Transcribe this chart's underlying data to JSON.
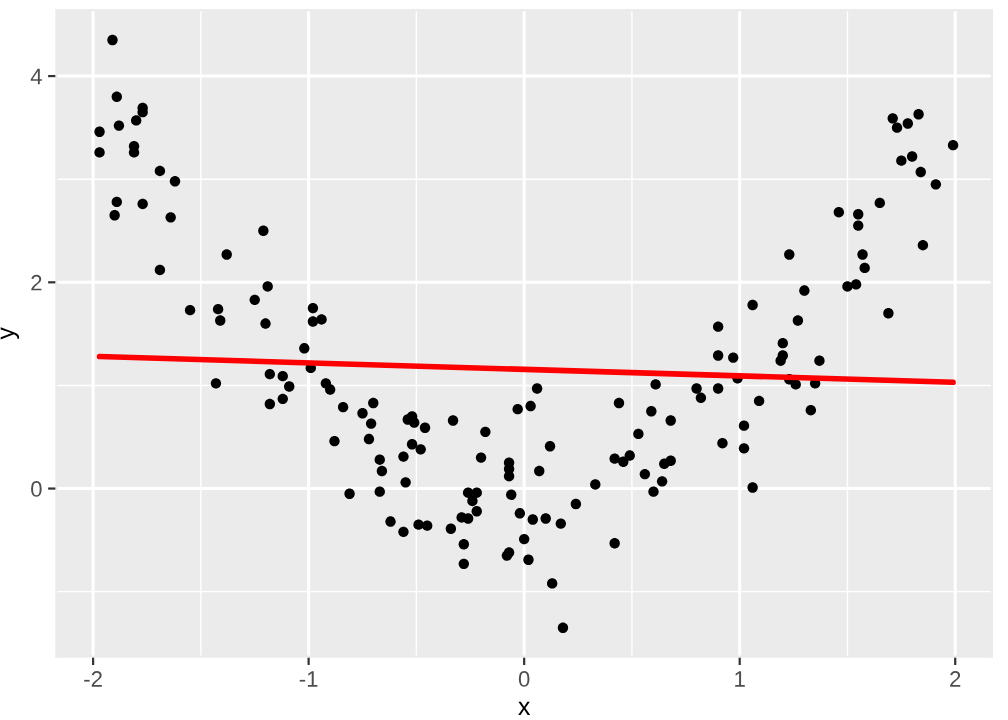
{
  "chart_data": {
    "type": "scatter",
    "xlabel": "x",
    "ylabel": "y",
    "xlim": [
      -2.17,
      2.17
    ],
    "ylim": [
      -1.63,
      4.64
    ],
    "xticks": [
      -2,
      -1,
      0,
      1,
      2
    ],
    "yticks": [
      0,
      2,
      4
    ],
    "grid": true,
    "series": [
      {
        "color": "#000000",
        "marker": "circle",
        "x": [
          -1.91,
          -1.89,
          -1.77,
          -1.77,
          -1.97,
          -1.88,
          -1.8,
          -1.97,
          -1.81,
          -1.81,
          -1.69,
          -1.62,
          -1.89,
          -1.9,
          -1.77,
          -1.64,
          -1.21,
          -1.38,
          -1.69,
          -1.19,
          -1.25,
          -1.55,
          -1.42,
          -1.41,
          -1.2,
          -0.98,
          -0.98,
          -0.94,
          -1.02,
          -0.99,
          -1.43,
          -1.18,
          -1.12,
          -1.09,
          -1.18,
          -1.12,
          -0.92,
          -0.9,
          -0.84,
          -0.75,
          -0.7,
          -0.71,
          -0.72,
          -0.88,
          -0.81,
          -0.67,
          -0.66,
          -0.67,
          -0.62,
          -0.56,
          -0.55,
          -0.56,
          -0.54,
          -0.52,
          -0.51,
          -0.46,
          -0.52,
          -0.48,
          -0.49,
          -0.45,
          -0.33,
          -0.34,
          -0.29,
          -0.26,
          -0.28,
          -0.28,
          -0.26,
          -0.24,
          -0.22,
          -0.22,
          -0.2,
          -0.18,
          -0.07,
          -0.07,
          -0.07,
          -0.06,
          -0.03,
          -0.02,
          0.0,
          -0.08,
          -0.07,
          0.02,
          0.03,
          0.06,
          0.04,
          0.07,
          0.12,
          0.1,
          0.13,
          0.17,
          0.18,
          0.24,
          0.33,
          0.42,
          0.42,
          0.44,
          0.46,
          0.49,
          0.53,
          0.56,
          0.59,
          0.61,
          0.6,
          0.64,
          0.65,
          0.68,
          0.68,
          0.8,
          0.82,
          0.9,
          0.92,
          0.9,
          0.9,
          0.97,
          0.99,
          1.06,
          1.02,
          1.02,
          1.06,
          1.09,
          1.23,
          1.2,
          1.2,
          1.19,
          1.23,
          1.26,
          1.27,
          1.3,
          1.33,
          1.35,
          1.37,
          1.5,
          1.54,
          1.57,
          1.58,
          1.69,
          1.85,
          1.71,
          1.73,
          1.78,
          1.83,
          1.99,
          1.75,
          1.8,
          1.84,
          1.91,
          1.65,
          1.46,
          1.55,
          1.55
        ],
        "values": [
          4.35,
          3.8,
          3.69,
          3.65,
          3.46,
          3.52,
          3.57,
          3.26,
          3.32,
          3.26,
          3.08,
          2.98,
          2.78,
          2.65,
          2.76,
          2.63,
          2.5,
          2.27,
          2.12,
          1.96,
          1.83,
          1.73,
          1.74,
          1.63,
          1.6,
          1.75,
          1.62,
          1.64,
          1.36,
          1.17,
          1.02,
          1.11,
          1.09,
          0.99,
          0.82,
          0.87,
          1.02,
          0.96,
          0.79,
          0.73,
          0.83,
          0.63,
          0.48,
          0.46,
          -0.05,
          0.28,
          0.17,
          -0.03,
          -0.32,
          -0.42,
          0.06,
          0.31,
          0.67,
          0.7,
          0.64,
          0.59,
          0.43,
          0.38,
          -0.35,
          -0.36,
          0.66,
          -0.39,
          -0.28,
          -0.29,
          -0.54,
          -0.73,
          -0.04,
          -0.12,
          -0.04,
          -0.22,
          0.3,
          0.55,
          0.25,
          0.19,
          0.12,
          -0.06,
          0.77,
          -0.24,
          -0.49,
          -0.65,
          -0.62,
          -0.69,
          0.8,
          0.97,
          -0.3,
          0.17,
          0.41,
          -0.29,
          -0.92,
          -0.34,
          -1.35,
          -0.15,
          0.04,
          0.29,
          -0.53,
          0.83,
          0.26,
          0.32,
          0.53,
          0.14,
          0.75,
          1.01,
          -0.03,
          0.07,
          0.24,
          0.27,
          0.66,
          0.97,
          0.88,
          0.97,
          0.44,
          1.29,
          1.57,
          1.27,
          1.07,
          1.78,
          0.61,
          0.39,
          0.01,
          0.85,
          2.27,
          1.41,
          1.29,
          1.24,
          1.06,
          1.01,
          1.63,
          1.92,
          0.76,
          1.02,
          1.24,
          1.96,
          1.98,
          2.27,
          2.14,
          1.7,
          2.36,
          3.59,
          3.5,
          3.54,
          3.63,
          3.33,
          3.18,
          3.22,
          3.07,
          2.95,
          2.77,
          2.68,
          2.66,
          2.55
        ]
      },
      {
        "type": "line",
        "marker": "none",
        "color": "#ff0000",
        "x": [
          -1.97,
          1.99
        ],
        "values": [
          1.28,
          1.03
        ]
      }
    ]
  }
}
